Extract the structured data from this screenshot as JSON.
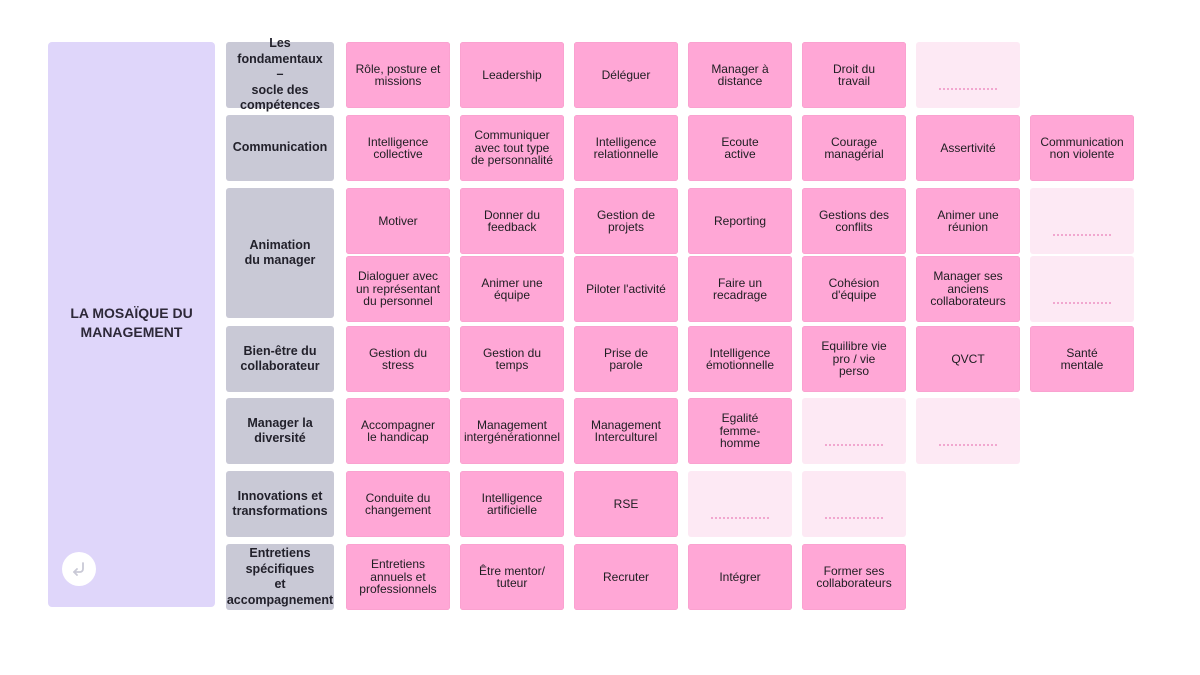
{
  "title": "LA MOSAÏQUE DU\nMANAGEMENT",
  "colors": {
    "panel": "#dfd6fa",
    "category": "#c9c9d6",
    "tile": "#ffa7d6",
    "placeholder": "#fde9f4"
  },
  "back_icon": "return-arrow-icon",
  "categories": [
    "Les fondamentaux\n–\nsocle des\ncompétences",
    "Communication",
    "Animation\ndu manager",
    "Bien-être du\ncollaborateur",
    "Manager la\ndiversité",
    "Innovations et\ntransformations",
    "Entretiens\nspécifiques\net\naccompagnement"
  ],
  "rows": [
    [
      "Rôle, posture et\nmissions",
      "Leadership",
      "Déléguer",
      "Manager à\ndistance",
      "Droit du\ntravail",
      ""
    ],
    [
      "Intelligence\ncollective",
      "Communiquer\navec tout type\nde personnalité",
      "Intelligence\nrelationnelle",
      "Ecoute\nactive",
      "Courage\nmanagérial",
      "Assertivité",
      "Communication\nnon violente"
    ],
    [
      "Motiver",
      "Donner du\nfeedback",
      "Gestion de\nprojets",
      "Reporting",
      "Gestions des\nconflits",
      "Animer une\nréunion",
      ""
    ],
    [
      "Dialoguer avec\nun représentant\ndu personnel",
      "Animer une\néquipe",
      "Piloter l'activité",
      "Faire un\nrecadrage",
      "Cohésion\nd'équipe",
      "Manager ses\nanciens\ncollaborateurs",
      ""
    ],
    [
      "Gestion du\nstress",
      "Gestion du\ntemps",
      "Prise de\nparole",
      "Intelligence\némotionnelle",
      "Equilibre vie\npro / vie\nperso",
      "QVCT",
      "Santé\nmentale"
    ],
    [
      "Accompagner\nle handicap",
      "Management\nintergénérationnel",
      "Management\nInterculturel",
      "Egalité\nfemme-\nhomme",
      "",
      ""
    ],
    [
      "Conduite du\nchangement",
      "Intelligence\nartificielle",
      "RSE",
      "",
      ""
    ],
    [
      "Entretiens\nannuels et\nprofessionnels",
      "Être mentor/\ntuteur",
      "Recruter",
      "Intégrer",
      "Former ses\ncollaborateurs"
    ]
  ]
}
